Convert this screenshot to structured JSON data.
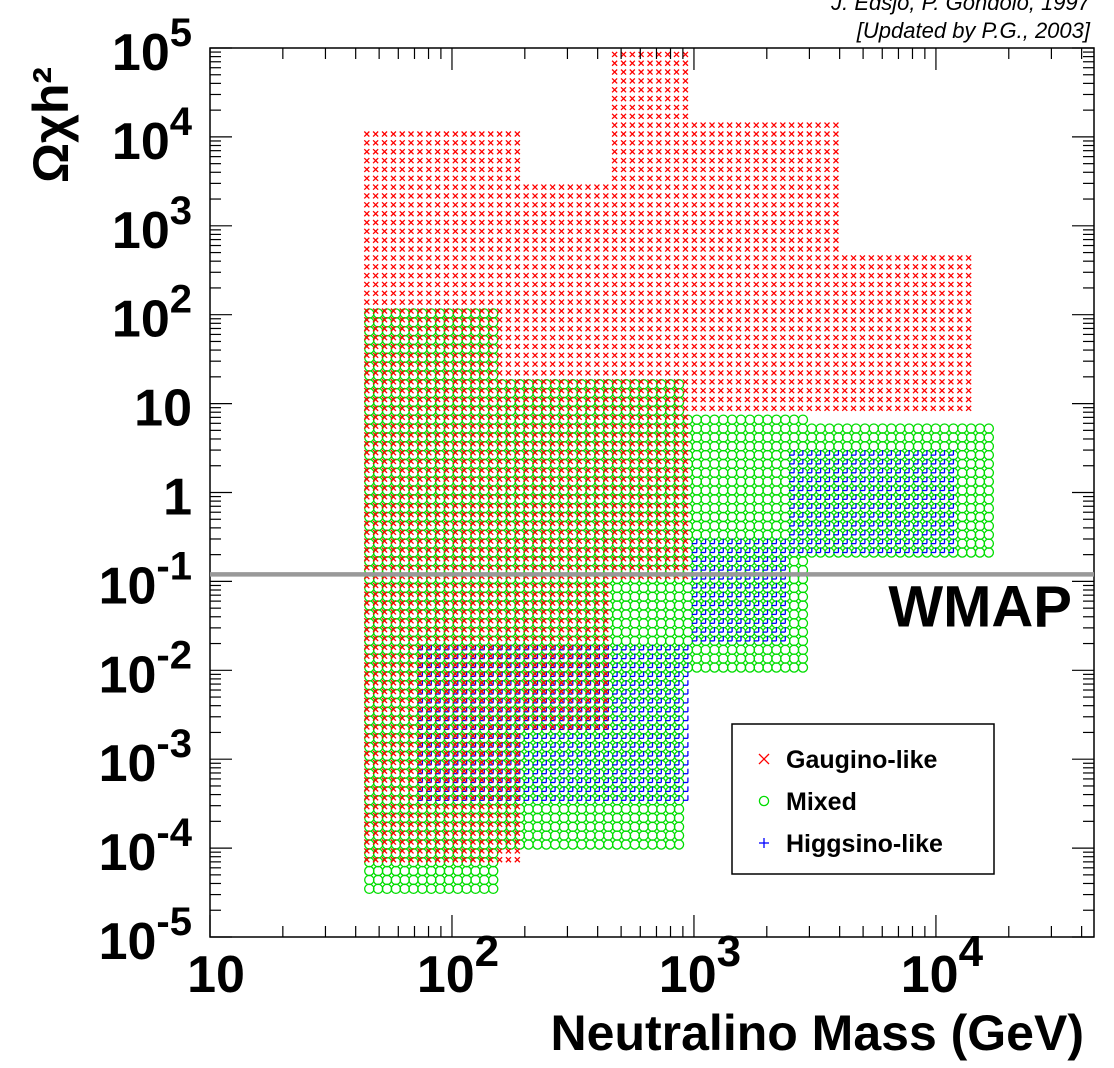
{
  "credits": {
    "line1": "J. Edsjo, P. Gondolo, 1997",
    "line2": "[Updated by P.G., 2003]"
  },
  "chart_data": {
    "type": "scatter",
    "xlabel": "Neutralino Mass (GeV)",
    "ylabel": "Ωχh²",
    "xscale": "log",
    "yscale": "log",
    "xlim": [
      10,
      45000
    ],
    "ylim": [
      1e-05,
      100000
    ],
    "x_ticks": [
      {
        "value": 10,
        "base": "10",
        "exp": ""
      },
      {
        "value": 100,
        "base": "10",
        "exp": "2"
      },
      {
        "value": 1000,
        "base": "10",
        "exp": "3"
      },
      {
        "value": 10000,
        "base": "10",
        "exp": "4"
      }
    ],
    "y_ticks": [
      {
        "value": 100000,
        "base": "10",
        "exp": "5"
      },
      {
        "value": 10000,
        "base": "10",
        "exp": "4"
      },
      {
        "value": 1000,
        "base": "10",
        "exp": "3"
      },
      {
        "value": 100,
        "base": "10",
        "exp": "2"
      },
      {
        "value": 10,
        "base": "10",
        "exp": ""
      },
      {
        "value": 1,
        "base": "1",
        "exp": ""
      },
      {
        "value": 0.1,
        "base": "10",
        "exp": "-1"
      },
      {
        "value": 0.01,
        "base": "10",
        "exp": "-2"
      },
      {
        "value": 0.001,
        "base": "10",
        "exp": "-3"
      },
      {
        "value": 0.0001,
        "base": "10",
        "exp": "-4"
      },
      {
        "value": 1e-05,
        "base": "10",
        "exp": "-5"
      }
    ],
    "reference_line": {
      "label": "WMAP",
      "y": 0.12,
      "color": "#999999"
    },
    "legend_position": "bottom-right",
    "series": [
      {
        "name": "Gaugino-like",
        "marker": "x",
        "color": "#ff0000"
      },
      {
        "name": "Mixed",
        "marker": "o",
        "color": "#00dd00"
      },
      {
        "name": "Higgsino-like",
        "marker": "+",
        "color": "#0000ff"
      }
    ],
    "regions": [
      {
        "series": "Gaugino-like",
        "x_min": 45,
        "x_max": 200,
        "y_min": 6e-05,
        "y_max": 12000
      },
      {
        "series": "Gaugino-like",
        "x_min": 200,
        "x_max": 450,
        "y_min": 0.002,
        "y_max": 3000
      },
      {
        "series": "Gaugino-like",
        "x_min": 450,
        "x_max": 1000,
        "y_min": 0.1,
        "y_max": 80000
      },
      {
        "series": "Gaugino-like",
        "x_min": 1000,
        "x_max": 4000,
        "y_min": 8,
        "y_max": 15000
      },
      {
        "series": "Gaugino-like",
        "x_min": 4000,
        "x_max": 14000,
        "y_min": 8,
        "y_max": 500
      },
      {
        "series": "Mixed",
        "x_min": 45,
        "x_max": 150,
        "y_min": 3e-05,
        "y_max": 120
      },
      {
        "series": "Mixed",
        "x_min": 150,
        "x_max": 900,
        "y_min": 0.0001,
        "y_max": 20
      },
      {
        "series": "Mixed",
        "x_min": 900,
        "x_max": 3000,
        "y_min": 0.01,
        "y_max": 8
      },
      {
        "series": "Mixed",
        "x_min": 3000,
        "x_max": 17000,
        "y_min": 0.2,
        "y_max": 6
      },
      {
        "series": "Higgsino-like",
        "x_min": 70,
        "x_max": 950,
        "y_min": 0.0003,
        "y_max": 0.02
      },
      {
        "series": "Higgsino-like",
        "x_min": 1000,
        "x_max": 2500,
        "y_min": 0.02,
        "y_max": 0.3
      },
      {
        "series": "Higgsino-like",
        "x_min": 2500,
        "x_max": 12000,
        "y_min": 0.2,
        "y_max": 3
      }
    ]
  }
}
